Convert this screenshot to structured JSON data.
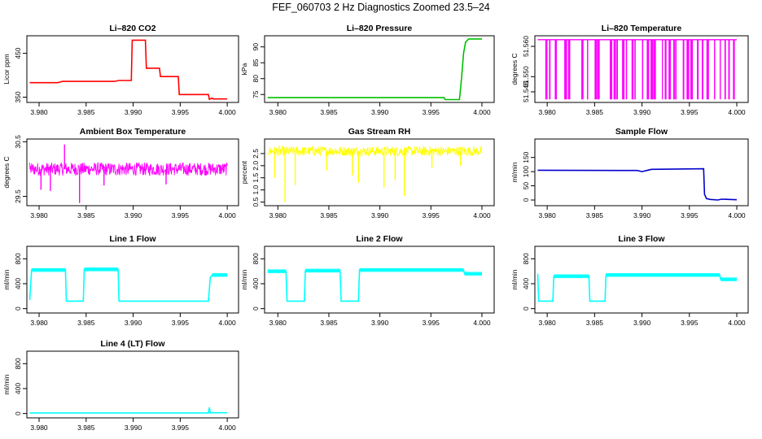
{
  "title": "FEF_060703  2 Hz Diagnostics Zoomed 23.5–24",
  "chart_data": [
    {
      "type": "line",
      "title": "Li–820 CO2",
      "ylabel": "Licor ppm",
      "color": "#ff0000",
      "xlim": [
        3.979,
        4.0
      ],
      "ylim": [
        338,
        490
      ],
      "yticks": [
        350,
        450
      ],
      "xticks": [
        "3.980",
        "3.985",
        "3.990",
        "3.995",
        "4.000"
      ],
      "x": [
        3.979,
        3.982,
        3.9825,
        3.988,
        3.9885,
        3.9898,
        3.9899,
        3.9913,
        3.9914,
        3.9928,
        3.9929,
        3.9948,
        3.9949,
        3.998,
        3.9981,
        3.9984,
        3.9985,
        4.0
      ],
      "y": [
        383,
        383,
        386,
        386,
        388,
        388,
        480,
        480,
        416,
        416,
        397,
        397,
        356,
        356,
        345,
        348,
        346,
        346
      ]
    },
    {
      "type": "line",
      "title": "Li–820 Pressure",
      "ylabel": "kPa",
      "color": "#00c000",
      "xlim": [
        3.979,
        4.0
      ],
      "ylim": [
        72.5,
        93.5
      ],
      "yticks": [
        75,
        80,
        85,
        90
      ],
      "xticks": [
        "3.980",
        "3.985",
        "3.990",
        "3.995",
        "4.000"
      ],
      "x": [
        3.979,
        3.9963,
        3.9964,
        3.9978,
        3.998,
        3.9982,
        3.9984,
        3.9987,
        4.0
      ],
      "y": [
        74,
        74,
        73.4,
        73.4,
        80,
        88,
        91.5,
        92.5,
        92.5
      ]
    },
    {
      "type": "line",
      "title": "Li–820 Temperature",
      "ylabel": "degrees C",
      "color": "#ff00ff",
      "xlim": [
        3.979,
        4.0
      ],
      "ylim": [
        51.5415,
        51.5635
      ],
      "yticks": [
        51.545,
        51.55,
        51.56
      ],
      "ytick_labels": [
        "51.545",
        "51.550",
        "51.560"
      ],
      "xticks": [
        "3.980",
        "3.985",
        "3.990",
        "3.995",
        "4.000"
      ],
      "y_high": 51.5622,
      "y_low": 51.5425,
      "drop_x": [
        3.9798,
        3.9802,
        3.9808,
        3.9818,
        3.9822,
        3.9836,
        3.9842,
        3.985,
        3.9853,
        3.9866,
        3.987,
        3.9873,
        3.9879,
        3.9883,
        3.9889,
        3.9892,
        3.99,
        3.9905,
        3.9909,
        3.9912,
        3.9921,
        3.9924,
        3.9928,
        3.9933,
        3.9935,
        3.9943,
        3.9947,
        3.9951,
        3.9958,
        3.9963,
        3.9968,
        3.9976,
        3.9982,
        3.9987,
        3.9991,
        3.9996
      ]
    },
    {
      "type": "line",
      "title": "Ambient Box Temperature",
      "ylabel": "degrees C",
      "color": "#ff00ff",
      "xlim": [
        3.979,
        4.0
      ],
      "ylim": [
        29.33,
        30.55
      ],
      "yticks": [
        29.5,
        30.5
      ],
      "ytick_labels": [
        "29.5",
        "30.5"
      ],
      "xticks": [
        "3.980",
        "3.985",
        "3.990",
        "3.995",
        "4.000"
      ],
      "base_level": 30.0,
      "band_half_width": 0.12,
      "spikes": [
        {
          "x": 3.9843,
          "y": 29.38
        },
        {
          "x": 3.9812,
          "y": 29.6
        },
        {
          "x": 3.9802,
          "y": 29.62
        },
        {
          "x": 3.9827,
          "y": 30.45
        },
        {
          "x": 3.9869,
          "y": 29.7
        },
        {
          "x": 3.9935,
          "y": 29.72
        }
      ]
    },
    {
      "type": "line",
      "title": "Gas Stream RH",
      "ylabel": "percent",
      "color": "#ffff00",
      "xlim": [
        3.979,
        4.0
      ],
      "ylim": [
        0.35,
        3.1
      ],
      "yticks": [
        0.5,
        1.0,
        1.5,
        2.0,
        2.5
      ],
      "ytick_labels": [
        "0.5",
        "1.0",
        "1.5",
        "2.0",
        "2.5"
      ],
      "xticks": [
        "3.980",
        "3.985",
        "3.990",
        "3.995",
        "4.000"
      ],
      "base_level": 2.6,
      "band_half_width": 0.2,
      "spikes": [
        {
          "x": 3.9797,
          "y": 1.5
        },
        {
          "x": 3.9807,
          "y": 0.5
        },
        {
          "x": 3.9817,
          "y": 1.2
        },
        {
          "x": 3.9848,
          "y": 1.8
        },
        {
          "x": 3.9873,
          "y": 1.6
        },
        {
          "x": 3.9879,
          "y": 1.3
        },
        {
          "x": 3.9904,
          "y": 1.1
        },
        {
          "x": 3.9915,
          "y": 1.4
        },
        {
          "x": 3.9924,
          "y": 0.75
        },
        {
          "x": 3.9951,
          "y": 1.9
        },
        {
          "x": 3.9979,
          "y": 2.0
        }
      ]
    },
    {
      "type": "line",
      "title": "Sample Flow",
      "ylabel": "ml/min",
      "color": "#0000cc",
      "xlim": [
        3.979,
        4.0
      ],
      "ylim": [
        -20,
        215
      ],
      "yticks": [
        0,
        50,
        100,
        150
      ],
      "xticks": [
        "3.980",
        "3.985",
        "3.990",
        "3.995",
        "4.000"
      ],
      "x": [
        3.979,
        3.9895,
        3.99,
        3.9905,
        3.991,
        3.9965,
        3.9966,
        3.9968,
        3.9972,
        3.998,
        3.9984,
        4.0
      ],
      "y": [
        105,
        104,
        100,
        104,
        108,
        110,
        20,
        5,
        2,
        0,
        3,
        1
      ]
    },
    {
      "type": "line",
      "title": "Line 1 Flow",
      "ylabel": "ml/min",
      "color": "#00ffff",
      "xlim": [
        3.979,
        4.0
      ],
      "ylim": [
        -70,
        1000
      ],
      "yticks": [
        0,
        400,
        800
      ],
      "xticks": [
        "3.980",
        "3.985",
        "3.990",
        "3.995",
        "4.000"
      ],
      "x": [
        3.979,
        3.9792,
        3.9828,
        3.9829,
        3.9847,
        3.9848,
        3.9884,
        3.9885,
        3.998,
        3.9982,
        3.9984,
        4.0
      ],
      "y": [
        140,
        620,
        620,
        120,
        120,
        630,
        630,
        120,
        120,
        500,
        540,
        540
      ]
    },
    {
      "type": "line",
      "title": "Line 2 Flow",
      "ylabel": "ml/min",
      "color": "#00ffff",
      "xlim": [
        3.979,
        4.0
      ],
      "ylim": [
        -70,
        1000
      ],
      "yticks": [
        0,
        400,
        800
      ],
      "xticks": [
        "3.980",
        "3.985",
        "3.990",
        "3.995",
        "4.000"
      ],
      "x": [
        3.979,
        3.9808,
        3.9809,
        3.9826,
        3.9827,
        3.9861,
        3.9862,
        3.9879,
        3.988,
        3.9982,
        3.9983,
        4.0
      ],
      "y": [
        600,
        600,
        120,
        120,
        610,
        610,
        120,
        120,
        620,
        620,
        560,
        560
      ]
    },
    {
      "type": "line",
      "title": "Line 3 Flow",
      "ylabel": "ml/min",
      "color": "#00ffff",
      "xlim": [
        3.979,
        4.0
      ],
      "ylim": [
        -70,
        1000
      ],
      "yticks": [
        0,
        400,
        800
      ],
      "xticks": [
        "3.980",
        "3.985",
        "3.990",
        "3.995",
        "4.000"
      ],
      "x": [
        3.979,
        3.9791,
        3.9806,
        3.9807,
        3.9844,
        3.9845,
        3.9861,
        3.9862,
        3.9982,
        3.9983,
        4.0
      ],
      "y": [
        560,
        120,
        120,
        520,
        520,
        120,
        120,
        540,
        540,
        470,
        470
      ]
    },
    {
      "type": "line",
      "title": "Line 4 (LT) Flow",
      "ylabel": "ml/min",
      "color": "#00ffff",
      "xlim": [
        3.979,
        4.0
      ],
      "ylim": [
        -70,
        1000
      ],
      "yticks": [
        0,
        400,
        800
      ],
      "xticks": [
        "3.980",
        "3.985",
        "3.990",
        "3.995",
        "4.000"
      ],
      "x": [
        3.979,
        3.998,
        3.9981,
        3.9982,
        3.9983,
        4.0
      ],
      "y": [
        10,
        10,
        100,
        10,
        12,
        12
      ]
    }
  ]
}
